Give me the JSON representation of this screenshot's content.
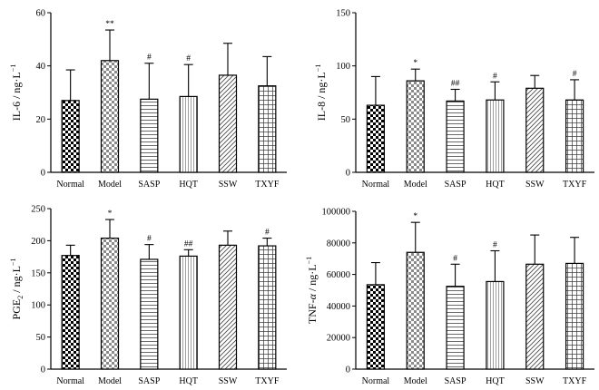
{
  "chart_data": [
    {
      "type": "bar",
      "ylabel_main": "IL-6 / ng",
      "ylabel_sep": "·",
      "ylabel_unit": "L",
      "ylabel_exp": "−1",
      "ylabel_italic": "",
      "ylabel_sub": "",
      "categories": [
        "Normal",
        "Model",
        "SASP",
        "HQT",
        "SSW",
        "TXYF"
      ],
      "values": [
        27,
        42,
        27.5,
        28.5,
        36.5,
        32.5
      ],
      "errors": [
        11.5,
        11.5,
        13.5,
        12,
        12,
        11
      ],
      "annotations": [
        "",
        "**",
        "#",
        "#",
        "",
        ""
      ],
      "ylim": [
        0,
        60
      ],
      "yticks": [
        "0",
        "20",
        "40",
        "60"
      ]
    },
    {
      "type": "bar",
      "ylabel_main": "IL-8 / ng",
      "ylabel_sep": "·",
      "ylabel_unit": "L",
      "ylabel_exp": "−1",
      "ylabel_italic": "",
      "ylabel_sub": "",
      "categories": [
        "Normal",
        "Model",
        "SASP",
        "HQT",
        "SSW",
        "TXYF"
      ],
      "values": [
        63,
        86,
        67,
        68,
        79,
        68
      ],
      "errors": [
        27,
        11,
        11,
        17,
        12,
        19
      ],
      "annotations": [
        "",
        "*",
        "##",
        "#",
        "",
        "#"
      ],
      "ylim": [
        0,
        150
      ],
      "yticks": [
        "0",
        "50",
        "100",
        "150"
      ]
    },
    {
      "type": "bar",
      "ylabel_main": "PGE",
      "ylabel_sub": "2",
      "ylabel_after": " / ng",
      "ylabel_sep": "·",
      "ylabel_unit": "L",
      "ylabel_exp": "−1",
      "ylabel_italic": "",
      "categories": [
        "Normal",
        "Model",
        "SASP",
        "HQT",
        "SSW",
        "TXYF"
      ],
      "values": [
        177,
        204,
        171,
        176,
        193,
        192
      ],
      "errors": [
        16,
        29,
        23,
        10,
        22,
        12
      ],
      "annotations": [
        "",
        "*",
        "#",
        "##",
        "",
        "#"
      ],
      "ylim": [
        0,
        250
      ],
      "yticks": [
        "0",
        "50",
        "100",
        "150",
        "200",
        "250"
      ]
    },
    {
      "type": "bar",
      "ylabel_main": "TNF-",
      "ylabel_italic": "α",
      "ylabel_after": " / ng",
      "ylabel_sep": "·",
      "ylabel_unit": "L",
      "ylabel_exp": "−1",
      "ylabel_sub": "",
      "categories": [
        "Normal",
        "Model",
        "SASP",
        "HQT",
        "SSW",
        "TXYF"
      ],
      "values": [
        53500,
        74000,
        52500,
        55500,
        66500,
        67000
      ],
      "errors": [
        14000,
        19000,
        14000,
        19500,
        18500,
        16500
      ],
      "annotations": [
        "",
        "*",
        "#",
        "#",
        "",
        ""
      ],
      "ylim": [
        0,
        100000
      ],
      "yticks": [
        "0",
        "20000",
        "40000",
        "60000",
        "80000",
        "100000"
      ]
    }
  ],
  "patterns": [
    "checker-fine",
    "checker-coarse",
    "horizontal-lines",
    "vertical-lines",
    "diagonal-lines",
    "grid-lines"
  ]
}
